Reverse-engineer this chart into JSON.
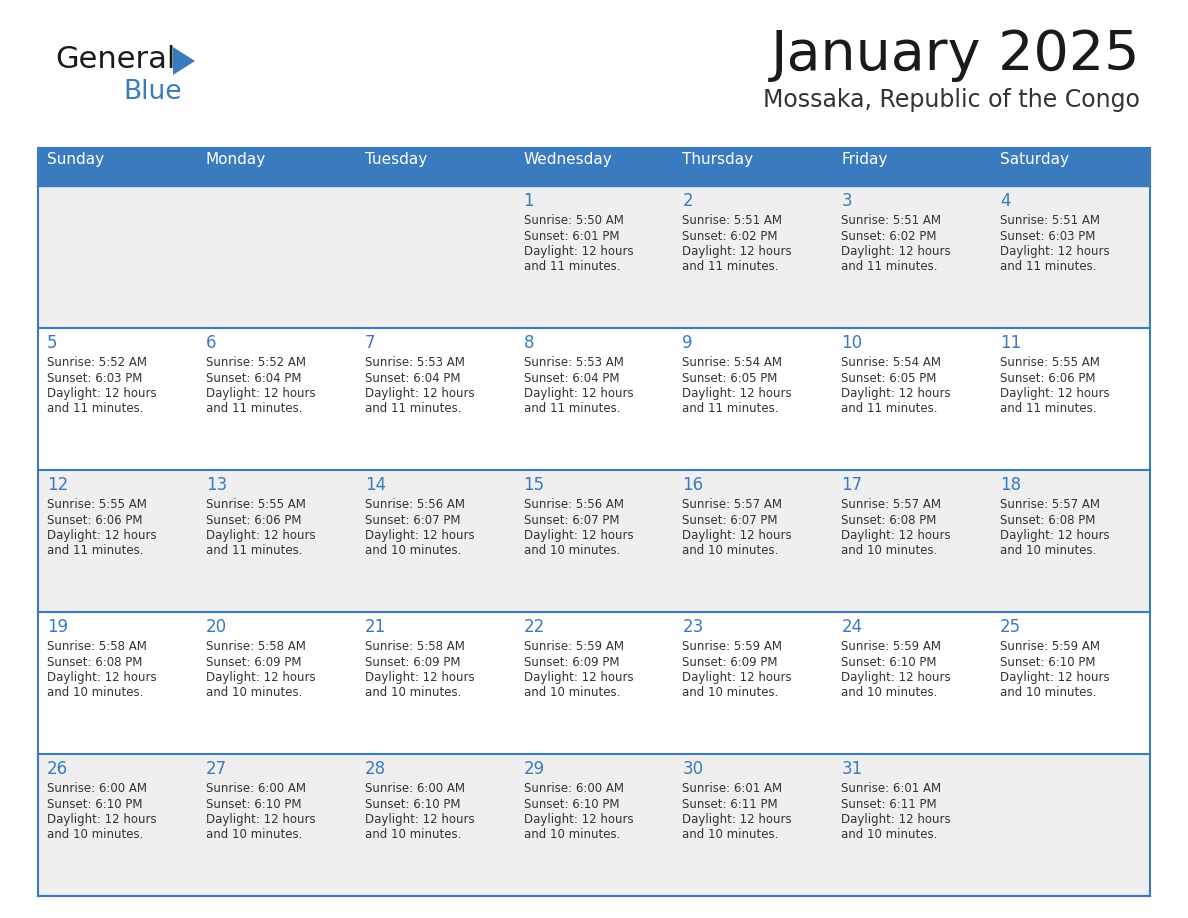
{
  "title": "January 2025",
  "subtitle": "Mossaka, Republic of the Congo",
  "days_of_week": [
    "Sunday",
    "Monday",
    "Tuesday",
    "Wednesday",
    "Thursday",
    "Friday",
    "Saturday"
  ],
  "header_bg": "#3a7abf",
  "header_text": "#ffffff",
  "row_bg_even": "#efefef",
  "row_bg_odd": "#ffffff",
  "cell_border": "#3a7abf",
  "title_color": "#1a1a1a",
  "subtitle_color": "#333333",
  "day_number_color": "#3a7abf",
  "text_color": "#333333",
  "logo_black": "#1a1a1a",
  "logo_blue": "#3a7abf",
  "calendar": [
    [
      null,
      null,
      null,
      {
        "day": 1,
        "sunrise": "5:50 AM",
        "sunset": "6:01 PM",
        "daylight_hours": 12,
        "daylight_minutes": 11
      },
      {
        "day": 2,
        "sunrise": "5:51 AM",
        "sunset": "6:02 PM",
        "daylight_hours": 12,
        "daylight_minutes": 11
      },
      {
        "day": 3,
        "sunrise": "5:51 AM",
        "sunset": "6:02 PM",
        "daylight_hours": 12,
        "daylight_minutes": 11
      },
      {
        "day": 4,
        "sunrise": "5:51 AM",
        "sunset": "6:03 PM",
        "daylight_hours": 12,
        "daylight_minutes": 11
      }
    ],
    [
      {
        "day": 5,
        "sunrise": "5:52 AM",
        "sunset": "6:03 PM",
        "daylight_hours": 12,
        "daylight_minutes": 11
      },
      {
        "day": 6,
        "sunrise": "5:52 AM",
        "sunset": "6:04 PM",
        "daylight_hours": 12,
        "daylight_minutes": 11
      },
      {
        "day": 7,
        "sunrise": "5:53 AM",
        "sunset": "6:04 PM",
        "daylight_hours": 12,
        "daylight_minutes": 11
      },
      {
        "day": 8,
        "sunrise": "5:53 AM",
        "sunset": "6:04 PM",
        "daylight_hours": 12,
        "daylight_minutes": 11
      },
      {
        "day": 9,
        "sunrise": "5:54 AM",
        "sunset": "6:05 PM",
        "daylight_hours": 12,
        "daylight_minutes": 11
      },
      {
        "day": 10,
        "sunrise": "5:54 AM",
        "sunset": "6:05 PM",
        "daylight_hours": 12,
        "daylight_minutes": 11
      },
      {
        "day": 11,
        "sunrise": "5:55 AM",
        "sunset": "6:06 PM",
        "daylight_hours": 12,
        "daylight_minutes": 11
      }
    ],
    [
      {
        "day": 12,
        "sunrise": "5:55 AM",
        "sunset": "6:06 PM",
        "daylight_hours": 12,
        "daylight_minutes": 11
      },
      {
        "day": 13,
        "sunrise": "5:55 AM",
        "sunset": "6:06 PM",
        "daylight_hours": 12,
        "daylight_minutes": 11
      },
      {
        "day": 14,
        "sunrise": "5:56 AM",
        "sunset": "6:07 PM",
        "daylight_hours": 12,
        "daylight_minutes": 10
      },
      {
        "day": 15,
        "sunrise": "5:56 AM",
        "sunset": "6:07 PM",
        "daylight_hours": 12,
        "daylight_minutes": 10
      },
      {
        "day": 16,
        "sunrise": "5:57 AM",
        "sunset": "6:07 PM",
        "daylight_hours": 12,
        "daylight_minutes": 10
      },
      {
        "day": 17,
        "sunrise": "5:57 AM",
        "sunset": "6:08 PM",
        "daylight_hours": 12,
        "daylight_minutes": 10
      },
      {
        "day": 18,
        "sunrise": "5:57 AM",
        "sunset": "6:08 PM",
        "daylight_hours": 12,
        "daylight_minutes": 10
      }
    ],
    [
      {
        "day": 19,
        "sunrise": "5:58 AM",
        "sunset": "6:08 PM",
        "daylight_hours": 12,
        "daylight_minutes": 10
      },
      {
        "day": 20,
        "sunrise": "5:58 AM",
        "sunset": "6:09 PM",
        "daylight_hours": 12,
        "daylight_minutes": 10
      },
      {
        "day": 21,
        "sunrise": "5:58 AM",
        "sunset": "6:09 PM",
        "daylight_hours": 12,
        "daylight_minutes": 10
      },
      {
        "day": 22,
        "sunrise": "5:59 AM",
        "sunset": "6:09 PM",
        "daylight_hours": 12,
        "daylight_minutes": 10
      },
      {
        "day": 23,
        "sunrise": "5:59 AM",
        "sunset": "6:09 PM",
        "daylight_hours": 12,
        "daylight_minutes": 10
      },
      {
        "day": 24,
        "sunrise": "5:59 AM",
        "sunset": "6:10 PM",
        "daylight_hours": 12,
        "daylight_minutes": 10
      },
      {
        "day": 25,
        "sunrise": "5:59 AM",
        "sunset": "6:10 PM",
        "daylight_hours": 12,
        "daylight_minutes": 10
      }
    ],
    [
      {
        "day": 26,
        "sunrise": "6:00 AM",
        "sunset": "6:10 PM",
        "daylight_hours": 12,
        "daylight_minutes": 10
      },
      {
        "day": 27,
        "sunrise": "6:00 AM",
        "sunset": "6:10 PM",
        "daylight_hours": 12,
        "daylight_minutes": 10
      },
      {
        "day": 28,
        "sunrise": "6:00 AM",
        "sunset": "6:10 PM",
        "daylight_hours": 12,
        "daylight_minutes": 10
      },
      {
        "day": 29,
        "sunrise": "6:00 AM",
        "sunset": "6:10 PM",
        "daylight_hours": 12,
        "daylight_minutes": 10
      },
      {
        "day": 30,
        "sunrise": "6:01 AM",
        "sunset": "6:11 PM",
        "daylight_hours": 12,
        "daylight_minutes": 10
      },
      {
        "day": 31,
        "sunrise": "6:01 AM",
        "sunset": "6:11 PM",
        "daylight_hours": 12,
        "daylight_minutes": 10
      },
      null
    ]
  ]
}
